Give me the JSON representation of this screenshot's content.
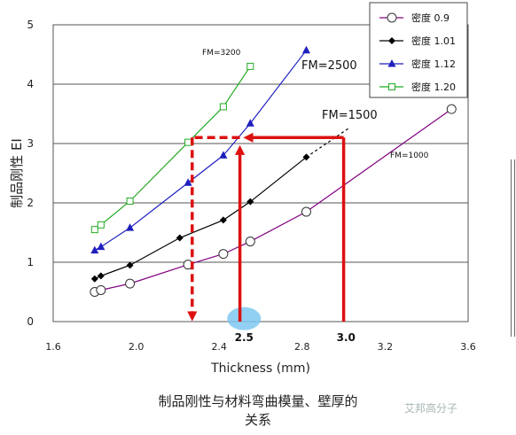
{
  "chart_data": {
    "type": "line",
    "xlabel": "Thickness (mm)",
    "ylabel": "制品刚性 EI",
    "xlim": [
      1.6,
      3.6
    ],
    "ylim": [
      0,
      5
    ],
    "xticks": [
      "1.6",
      "2.0",
      "2.4",
      "2.8",
      "3.2",
      "3.6"
    ],
    "yticks": [
      "0",
      "1",
      "2",
      "3",
      "4",
      "5"
    ],
    "grid": "horizontal",
    "legend_position": "top-right",
    "series": [
      {
        "name": "密度 0.9",
        "color": "#800080",
        "marker": "circle",
        "x": [
          1.8,
          1.83,
          1.97,
          2.25,
          2.42,
          2.55,
          2.82,
          3.52
        ],
        "y": [
          0.5,
          0.53,
          0.64,
          0.96,
          1.14,
          1.35,
          1.85,
          3.58
        ]
      },
      {
        "name": "密度 1.01",
        "color": "#000000",
        "marker": "diamond",
        "x": [
          1.8,
          1.83,
          1.97,
          2.21,
          2.42,
          2.55,
          2.82
        ],
        "y": [
          0.72,
          0.77,
          0.95,
          1.41,
          1.71,
          2.02,
          2.77
        ]
      },
      {
        "name": "密度 1.12",
        "color": "#1f1fbf",
        "marker": "triangle",
        "x": [
          1.8,
          1.83,
          1.97,
          2.25,
          2.42,
          2.55,
          2.82
        ],
        "y": [
          1.2,
          1.26,
          1.58,
          2.34,
          2.8,
          3.34,
          4.57
        ]
      },
      {
        "name": "密度 1.20",
        "color": "#22aa22",
        "marker": "square",
        "x": [
          1.8,
          1.83,
          1.97,
          2.25,
          2.42,
          2.55
        ],
        "y": [
          1.55,
          1.63,
          2.03,
          3.02,
          3.62,
          4.3
        ]
      }
    ],
    "annotations": [
      {
        "text": "FM=3200"
      },
      {
        "text": "FM=2500"
      },
      {
        "text": "FM=1500"
      },
      {
        "text": "FM=1000"
      },
      {
        "text": "2.5"
      },
      {
        "text": "3.0"
      }
    ]
  },
  "caption": {
    "line1": "制品刚性与材料弯曲模量、壁厚的",
    "line2": "关系"
  },
  "watermark": "艾邦高分子",
  "colors": {
    "guide_red": "#dd1111",
    "highlight": "#7ec8f0"
  }
}
